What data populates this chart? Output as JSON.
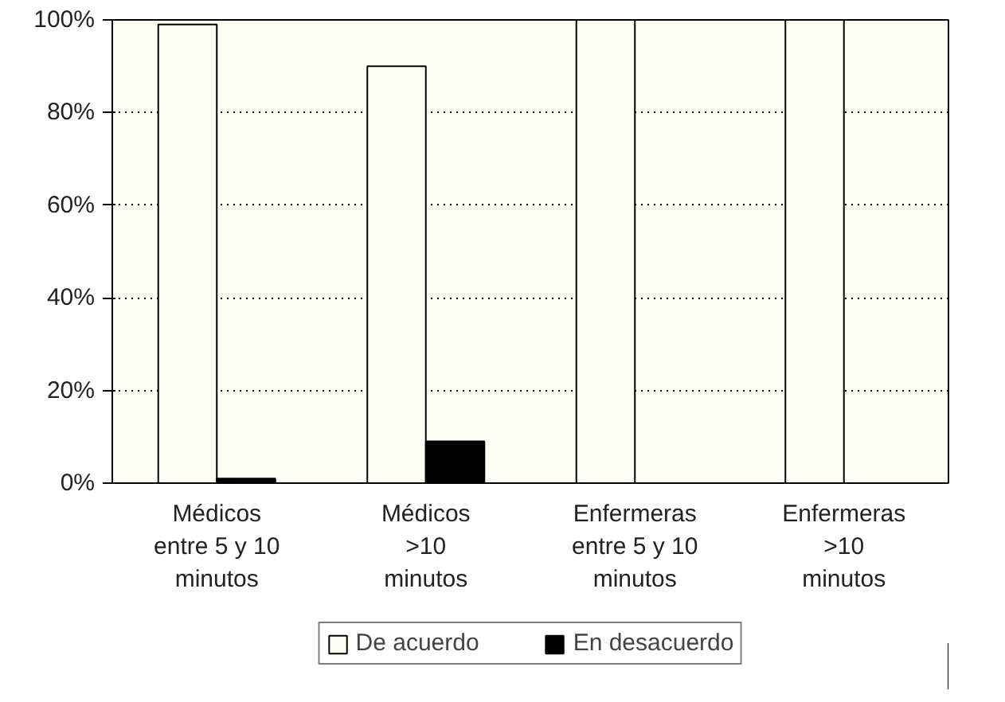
{
  "chart_data": {
    "type": "bar",
    "categories": [
      "Médicos\nentre 5 y 10\nminutos",
      "Médicos\n>10\nminutos",
      "Enfermeras\nentre 5 y 10\nminutos",
      "Enfermeras\n>10\nminutos"
    ],
    "series": [
      {
        "name": "De acuerdo",
        "color": "#fffef2",
        "values": [
          99,
          90,
          100,
          100
        ]
      },
      {
        "name": "En desacuerdo",
        "color": "#000000",
        "values": [
          1,
          9,
          0,
          0
        ]
      }
    ],
    "ylim": [
      0,
      100
    ],
    "yticks": [
      {
        "value": 0,
        "label": "0%"
      },
      {
        "value": 20,
        "label": "20%"
      },
      {
        "value": 40,
        "label": "40%"
      },
      {
        "value": 60,
        "label": "60%"
      },
      {
        "value": 80,
        "label": "80%"
      },
      {
        "value": 100,
        "label": "100%"
      }
    ],
    "grid": "y",
    "legend": "bottom"
  }
}
